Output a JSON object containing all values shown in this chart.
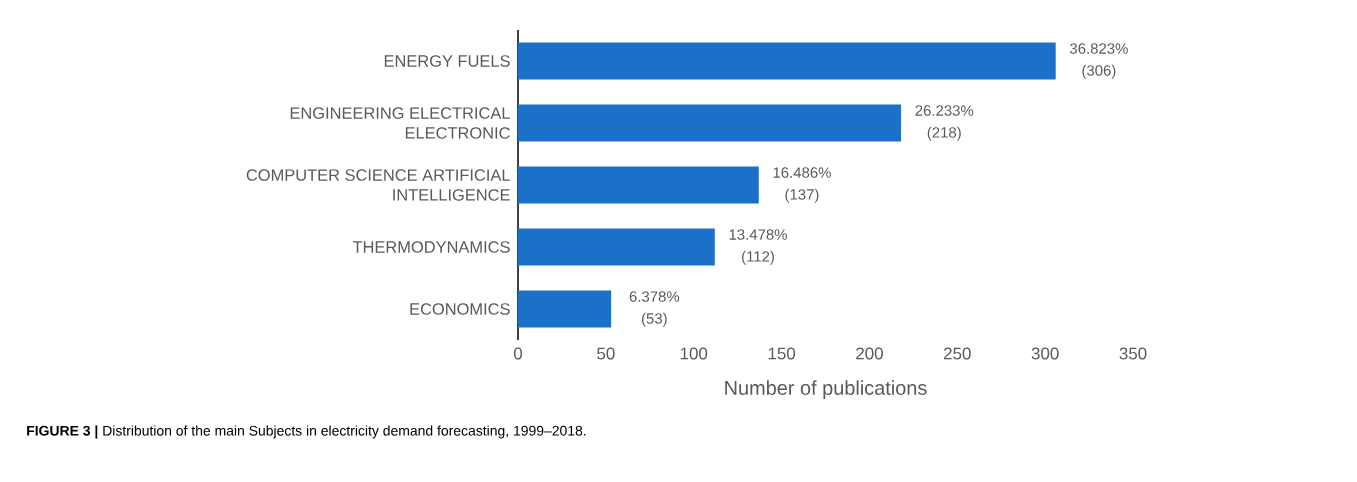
{
  "chart_data": {
    "type": "bar",
    "orientation": "horizontal",
    "xlabel": "Number of publications",
    "categories": [
      "ENERGY FUELS",
      "ENGINEERING ELECTRICAL ELECTRONIC",
      "COMPUTER SCIENCE ARTIFICIAL INTELLIGENCE",
      "THERMODYNAMICS",
      "ECONOMICS"
    ],
    "values": [
      306,
      218,
      137,
      112,
      53
    ],
    "value_labels": [
      "36.823% (306)",
      "26.233% (218)",
      "16.486% (137)",
      "13.478% (112)",
      "6.378% (53)"
    ],
    "color": "#1b70c8",
    "xlim": [
      0,
      350
    ],
    "xticks": [
      0,
      50,
      100,
      150,
      200,
      250,
      300,
      350
    ],
    "annotations": [
      "**FIGURE 3 |** Distribution of the main Subjects in electricity demand forecasting, 1999–2018."
    ]
  }
}
